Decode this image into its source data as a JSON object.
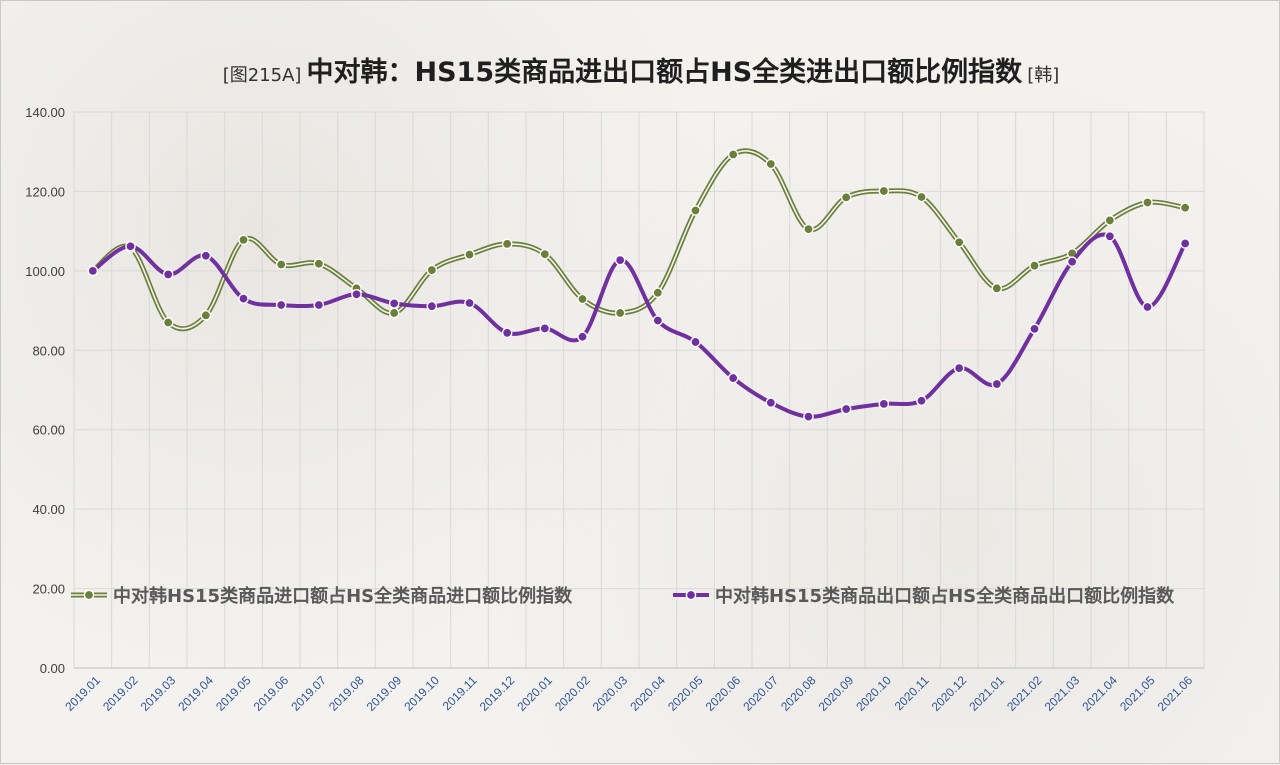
{
  "chart_data": {
    "type": "line",
    "title_prefix": "[图215A]",
    "title_main": "中对韩：HS15类商品进出口额占HS全类进出口额比例指数",
    "title_suffix": "[韩]",
    "ylim": [
      0,
      140
    ],
    "y_ticks": [
      "0.00",
      "20.00",
      "40.00",
      "60.00",
      "80.00",
      "100.00",
      "120.00",
      "140.00"
    ],
    "grid": true,
    "legend_position": "inside-bottom",
    "categories": [
      "2019.01",
      "2019.02",
      "2019.03",
      "2019.04",
      "2019.05",
      "2019.06",
      "2019.07",
      "2019.08",
      "2019.09",
      "2019.10",
      "2019.11",
      "2019.12",
      "2020.01",
      "2020.02",
      "2020.03",
      "2020.04",
      "2020.05",
      "2020.06",
      "2020.07",
      "2020.08",
      "2020.09",
      "2020.10",
      "2020.11",
      "2020.12",
      "2021.01",
      "2021.02",
      "2021.03",
      "2021.04",
      "2021.05",
      "2021.06"
    ],
    "series": [
      {
        "name": "中对韩HS15类商品进口额占HS全类商品进口额比例指数",
        "color": "#6b7f3a",
        "style": "double-line",
        "values": [
          100.0,
          105.8,
          87.0,
          88.8,
          107.8,
          101.6,
          101.8,
          95.6,
          89.4,
          100.2,
          104.1,
          106.8,
          104.2,
          92.9,
          89.4,
          94.5,
          115.2,
          129.3,
          126.9,
          110.5,
          118.5,
          120.1,
          118.6,
          107.2,
          95.6,
          101.3,
          104.4,
          112.7,
          117.2,
          115.9
        ]
      },
      {
        "name": "中对韩HS15类商品出口额占HS全类商品出口额比例指数",
        "color": "#7030a0",
        "style": "solid",
        "values": [
          100.0,
          106.2,
          99.1,
          103.8,
          93.0,
          91.4,
          91.4,
          94.1,
          91.8,
          91.1,
          91.9,
          84.4,
          85.5,
          83.4,
          102.7,
          87.5,
          82.1,
          73.0,
          66.8,
          63.3,
          65.2,
          66.5,
          67.3,
          75.5,
          71.5,
          85.4,
          102.3,
          108.7,
          90.9,
          106.9
        ]
      }
    ]
  }
}
